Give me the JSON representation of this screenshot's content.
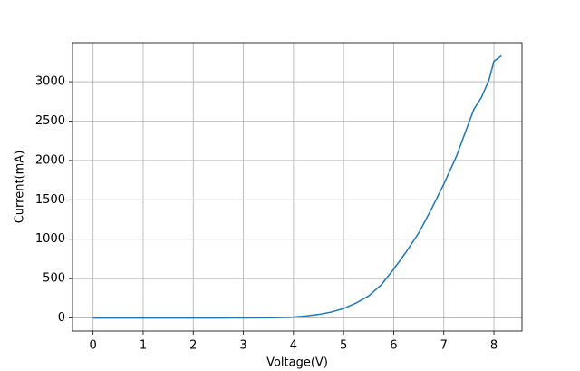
{
  "chart_data": {
    "type": "line",
    "x_label": "Voltage(V)",
    "y_label": "Current(mA)",
    "x": [
      0,
      0.5,
      1,
      1.5,
      2,
      2.5,
      3,
      3.5,
      4,
      4.25,
      4.5,
      4.75,
      5,
      5.25,
      5.5,
      5.75,
      6,
      6.25,
      6.5,
      6.75,
      7,
      7.25,
      7.5,
      7.6,
      7.75,
      7.9,
      8.0,
      8.15
    ],
    "series": [
      {
        "color": "#1f77b4",
        "values": [
          0,
          0,
          0,
          0,
          0,
          0,
          1,
          3,
          12,
          25,
          45,
          75,
          120,
          190,
          280,
          420,
          620,
          840,
          1080,
          1380,
          1700,
          2050,
          2480,
          2650,
          2800,
          3020,
          3260,
          3330
        ]
      }
    ],
    "xlim": [
      -0.41,
      8.56
    ],
    "xticks": [
      0,
      1,
      2,
      3,
      4,
      5,
      6,
      7,
      8
    ],
    "ylim": [
      -166,
      3496
    ],
    "yticks": [
      0,
      500,
      1000,
      1500,
      2000,
      2500,
      3000
    ],
    "grid": true
  }
}
